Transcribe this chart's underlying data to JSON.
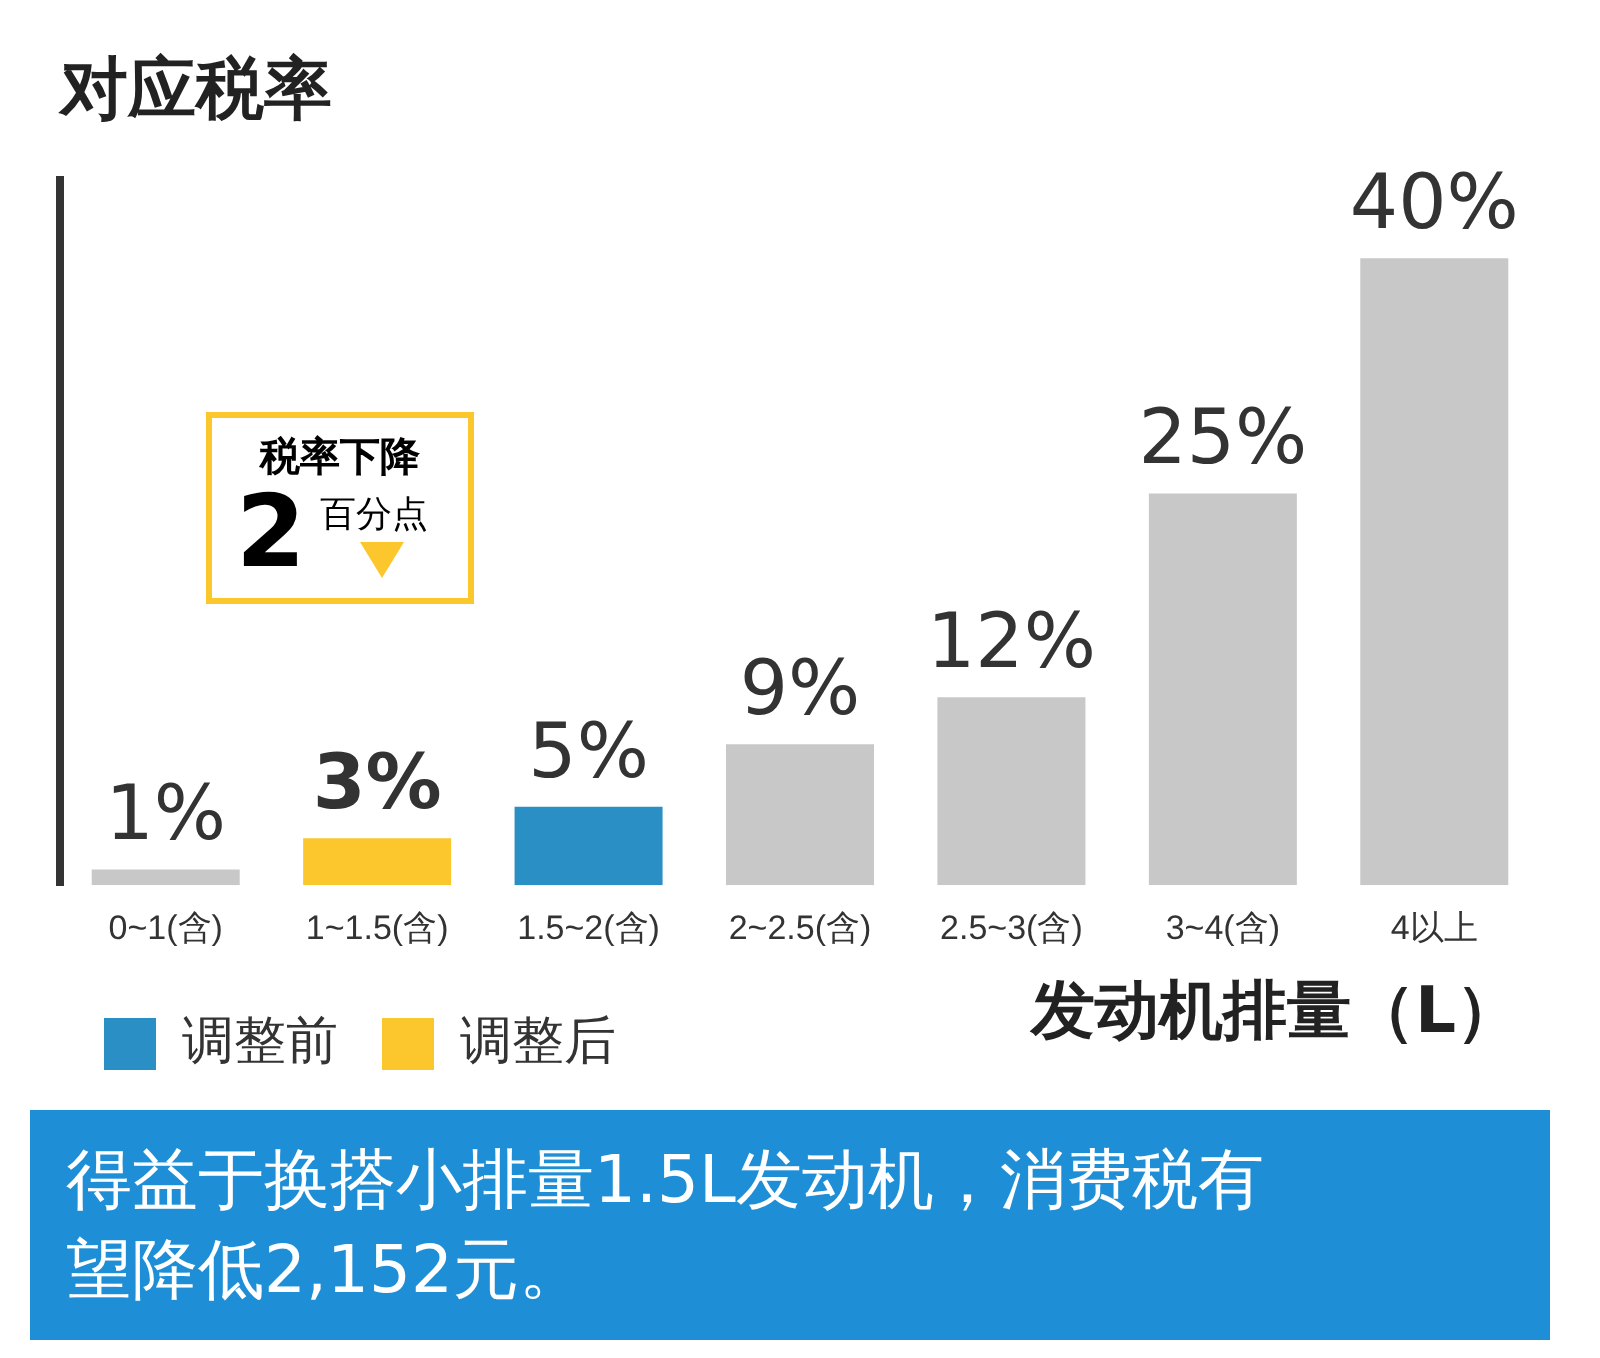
{
  "chart_data": {
    "type": "bar",
    "ylabel": "对应税率",
    "xlabel": "发动机排量（L）",
    "categories": [
      "0~1(含)",
      "1~1.5(含)",
      "1.5~2(含)",
      "2~2.5(含)",
      "2.5~3(含)",
      "3~4(含)",
      "4以上"
    ],
    "series": [
      {
        "color": "#c8c8c8",
        "values": [
          1,
          null,
          null,
          9,
          12,
          25,
          40
        ],
        "value_labels": [
          "1%",
          null,
          null,
          "9%",
          "12%",
          "25%",
          "40%"
        ]
      },
      {
        "name": "调整前",
        "color": "#2a8fc4",
        "values": [
          null,
          null,
          5,
          null,
          null,
          null,
          null
        ],
        "value_labels": [
          null,
          null,
          "5%",
          null,
          null,
          null,
          null
        ]
      },
      {
        "name": "调整后",
        "color": "#fcc72c",
        "values": [
          null,
          3,
          null,
          null,
          null,
          null,
          null
        ],
        "value_labels": [
          null,
          "3%",
          null,
          null,
          null,
          null,
          null
        ]
      }
    ],
    "tick_labels": "x",
    "legend": "bottom left",
    "grid": false,
    "annotations": [
      "税率下降",
      "2",
      "百分点",
      "得益于换搭小排量1.5L发动机，消费税有望降低2,152元。"
    ]
  }
}
